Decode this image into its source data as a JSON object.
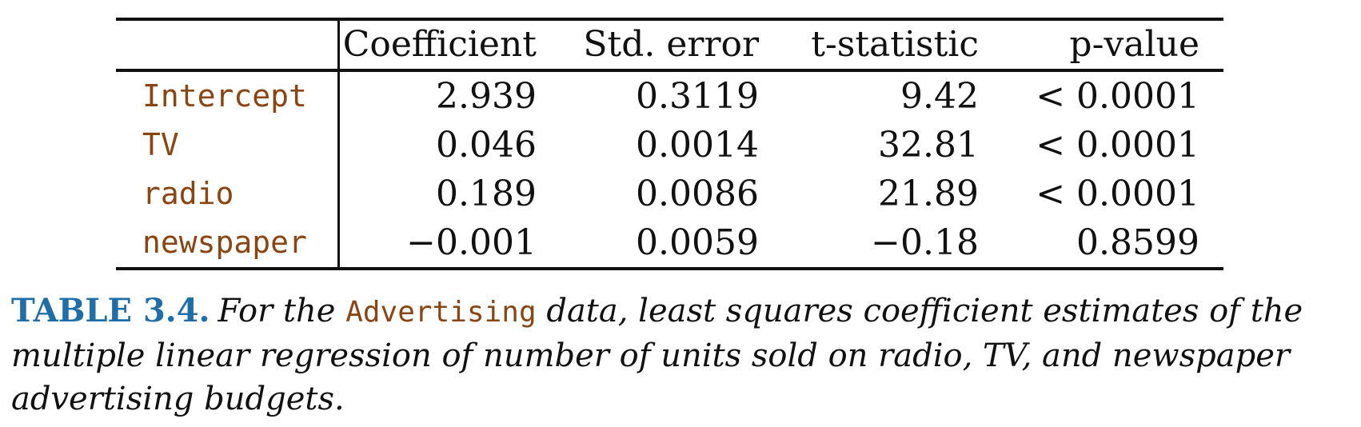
{
  "table": {
    "columns": [
      "Coefficient",
      "Std. error",
      "t-statistic",
      "p-value"
    ],
    "rows": [
      {
        "variable": "Intercept",
        "coefficient": "2.939",
        "std_error": "0.3119",
        "t_statistic": "9.42",
        "p_value": "< 0.0001"
      },
      {
        "variable": "TV",
        "coefficient": "0.046",
        "std_error": "0.0014",
        "t_statistic": "32.81",
        "p_value": "< 0.0001"
      },
      {
        "variable": "radio",
        "coefficient": "0.189",
        "std_error": "0.0086",
        "t_statistic": "21.89",
        "p_value": "< 0.0001"
      },
      {
        "variable": "newspaper",
        "coefficient": "−0.001",
        "std_error": "0.0059",
        "t_statistic": "−0.18",
        "p_value": "0.8599"
      }
    ]
  },
  "caption": {
    "label": "TABLE 3.4.",
    "text_before": "For the ",
    "code": "Advertising",
    "text_after": " data, least squares coefficient estimates of the multiple linear regression of number of units sold on radio, TV, and newspaper advertising budgets."
  },
  "colors": {
    "code_text": "#8a4513",
    "caption_label": "#1f6ea8",
    "rules": "#111111"
  }
}
